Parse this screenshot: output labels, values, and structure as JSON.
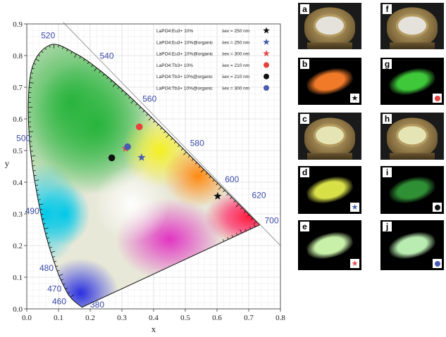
{
  "chart_data": {
    "type": "scatter",
    "title": "",
    "xlabel": "x",
    "ylabel": "y",
    "xlim": [
      0.0,
      0.8
    ],
    "ylim": [
      0.0,
      0.9
    ],
    "x_ticks": [
      "0.0",
      "0.1",
      "0.2",
      "0.3",
      "0.4",
      "0.5",
      "0.6",
      "0.7",
      "0.8"
    ],
    "y_ticks": [
      "0.0",
      "0.1",
      "0.2",
      "0.3",
      "0.4",
      "0.5",
      "0.6",
      "0.7",
      "0.8",
      "0.9"
    ],
    "grid": true,
    "legend_position": "top-right",
    "locus": [
      {
        "wl": "380",
        "x": 0.1741,
        "y": 0.005
      },
      {
        "wl": "460",
        "x": 0.144,
        "y": 0.0297
      },
      {
        "wl": "470",
        "x": 0.1241,
        "y": 0.0578
      },
      {
        "wl": "480",
        "x": 0.0913,
        "y": 0.1327
      },
      {
        "wl": "490",
        "x": 0.0454,
        "y": 0.295
      },
      {
        "wl": "500",
        "x": 0.0082,
        "y": 0.5384
      },
      {
        "wl": "",
        "x": 0.0139,
        "y": 0.7502
      },
      {
        "wl": "520",
        "x": 0.0743,
        "y": 0.8338
      },
      {
        "wl": "",
        "x": 0.1547,
        "y": 0.8059
      },
      {
        "wl": "540",
        "x": 0.2296,
        "y": 0.7543
      },
      {
        "wl": "",
        "x": 0.3016,
        "y": 0.6923
      },
      {
        "wl": "560",
        "x": 0.3731,
        "y": 0.6245
      },
      {
        "wl": "",
        "x": 0.4441,
        "y": 0.5547
      },
      {
        "wl": "580",
        "x": 0.5125,
        "y": 0.4866
      },
      {
        "wl": "",
        "x": 0.5752,
        "y": 0.4242
      },
      {
        "wl": "600",
        "x": 0.627,
        "y": 0.3725
      },
      {
        "wl": "",
        "x": 0.6658,
        "y": 0.334
      },
      {
        "wl": "620",
        "x": 0.6915,
        "y": 0.3083
      },
      {
        "wl": "",
        "x": 0.7079,
        "y": 0.292
      },
      {
        "wl": "700",
        "x": 0.7347,
        "y": 0.2653
      }
    ],
    "series": [
      {
        "name": "LaPO4:Eu3+ 10%",
        "excitation": "λex = 250 nm",
        "marker": "star",
        "color": "#111111",
        "x": 0.602,
        "y": 0.356
      },
      {
        "name": "LaPO4:Eu3+ 10%@organic",
        "excitation": "λex = 250 nm",
        "marker": "star",
        "color": "#4a5cb0",
        "x": 0.362,
        "y": 0.478
      },
      {
        "name": "LaPO4:Eu3+ 10%@organic",
        "excitation": "λex = 300 nm",
        "marker": "star",
        "color": "#e04848",
        "x": 0.312,
        "y": 0.507
      },
      {
        "name": "LaPO4:Tb3+ 10%",
        "excitation": "λex = 210 nm",
        "marker": "circle",
        "color": "#e84040",
        "x": 0.355,
        "y": 0.575
      },
      {
        "name": "LaPO4:Tb3+ 10%@organic",
        "excitation": "λex = 210 nm",
        "marker": "circle",
        "color": "#111111",
        "x": 0.268,
        "y": 0.477
      },
      {
        "name": "LaPO4:Tb3+ 10%@organic",
        "excitation": "λex = 300 nm",
        "marker": "circle",
        "color": "#4a5cb0",
        "x": 0.318,
        "y": 0.512
      }
    ]
  },
  "panels": [
    {
      "label": "a",
      "kind": "photo"
    },
    {
      "label": "b",
      "kind": "glow",
      "glow_color": "#f07a28",
      "marker": "star",
      "marker_color": "#111111"
    },
    {
      "label": "c",
      "kind": "photo-yellow"
    },
    {
      "label": "d",
      "kind": "glow",
      "glow_color": "#d8e048",
      "marker": "star",
      "marker_color": "#4a5cb0"
    },
    {
      "label": "e",
      "kind": "glow",
      "glow_color": "#c8f0a8",
      "marker": "star",
      "marker_color": "#e04848"
    },
    {
      "label": "f",
      "kind": "photo"
    },
    {
      "label": "g",
      "kind": "glow",
      "glow_color": "#3ec83a",
      "marker": "circle",
      "marker_color": "#e84040"
    },
    {
      "label": "h",
      "kind": "photo-yellow"
    },
    {
      "label": "i",
      "kind": "glow",
      "glow_color": "#2f8f34",
      "marker": "circle",
      "marker_color": "#111111"
    },
    {
      "label": "j",
      "kind": "glow",
      "glow_color": "#b8ecb0",
      "marker": "circle",
      "marker_color": "#4a5cb0"
    }
  ]
}
